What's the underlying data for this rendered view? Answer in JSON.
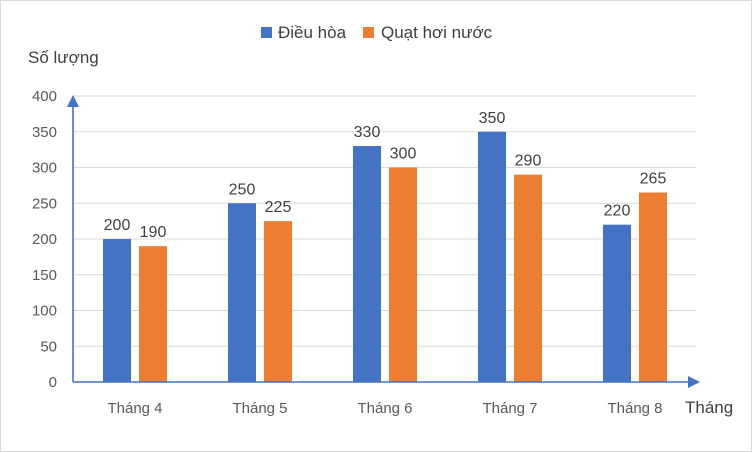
{
  "chart_data": {
    "type": "bar",
    "title": "",
    "ylabel": "Số lượng",
    "xlabel": "Tháng",
    "categories": [
      "Tháng 4",
      "Tháng 5",
      "Tháng 6",
      "Tháng 7",
      "Tháng 8"
    ],
    "series": [
      {
        "name": "Điều hòa",
        "values": [
          200,
          250,
          330,
          350,
          220
        ],
        "color": "#4472c4"
      },
      {
        "name": "Quạt hơi nước",
        "values": [
          190,
          225,
          300,
          290,
          265
        ],
        "color": "#ed7d31"
      }
    ],
    "ylim": [
      0,
      400
    ],
    "yticks": [
      "0",
      "50",
      "100",
      "150",
      "200",
      "250",
      "300",
      "350",
      "400"
    ],
    "grid": true,
    "legend_position": "top-center",
    "axis_color": "#4472c4"
  }
}
